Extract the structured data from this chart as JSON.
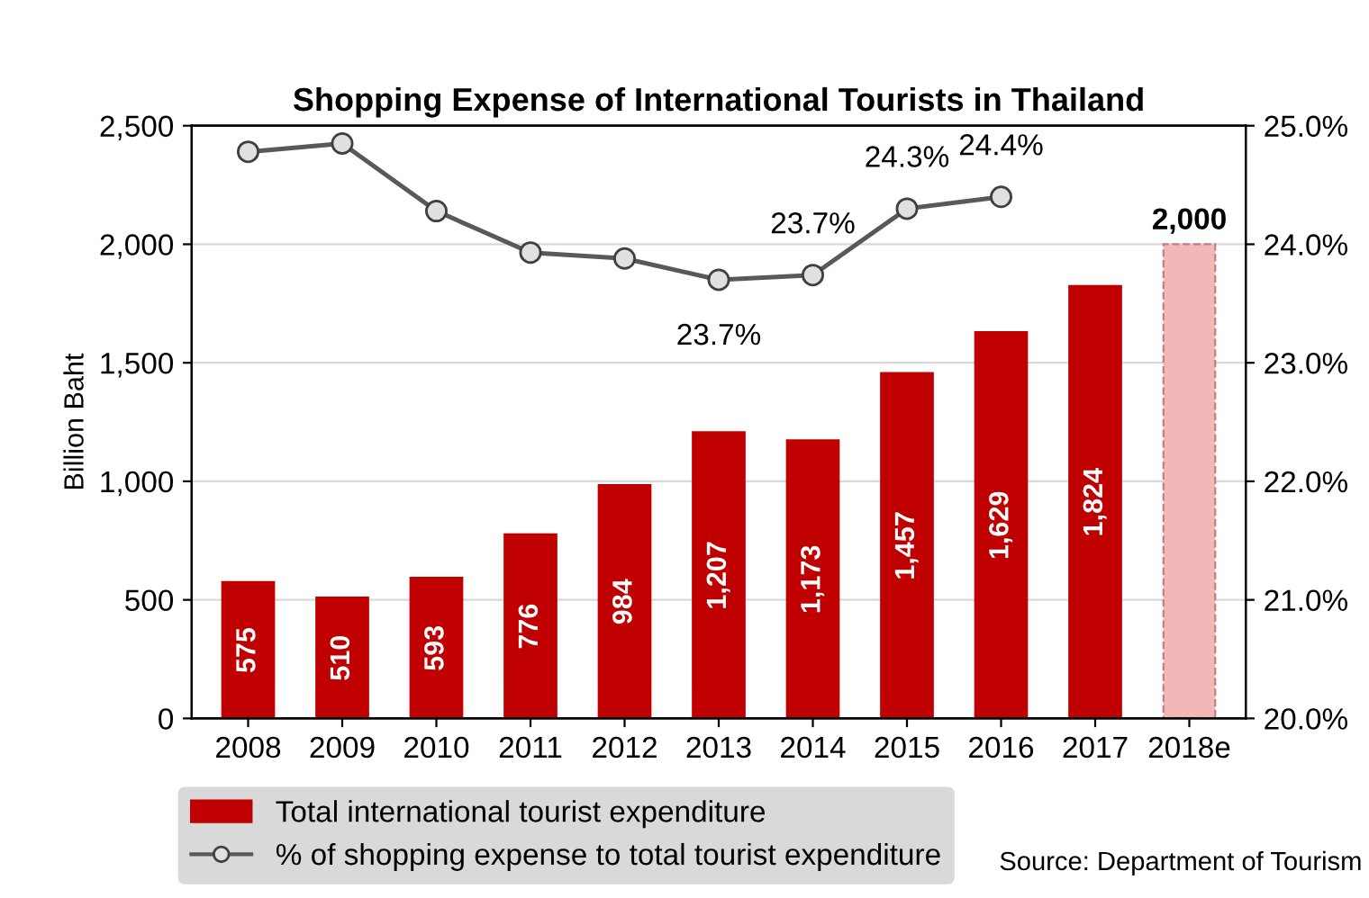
{
  "chart_data": {
    "type": "bar",
    "title": "Shopping Expense of International Tourists in Thailand",
    "ylabel": "Billion Baht",
    "categories": [
      "2008",
      "2009",
      "2010",
      "2011",
      "2012",
      "2013",
      "2014",
      "2015",
      "2016",
      "2017",
      "2018e"
    ],
    "series": [
      {
        "name": "Total international tourist expenditure",
        "color": "#c00000",
        "colors": [
          "#c00000",
          "#c00000",
          "#c00000",
          "#c00000",
          "#c00000",
          "#c00000",
          "#c00000",
          "#c00000",
          "#c00000",
          "#c00000",
          "#f2b8b8"
        ],
        "values": [
          575,
          510,
          593,
          776,
          984,
          1207,
          1173,
          1457,
          1629,
          1824,
          2000
        ],
        "value_labels": [
          "575",
          "510",
          "593",
          "776",
          "984",
          "1,207",
          "1,173",
          "1,457",
          "1,629",
          "1,824",
          "2,000"
        ]
      },
      {
        "name": "% of shopping expense to total tourist expenditure",
        "type": "line",
        "axis": "y2",
        "color": "#595959",
        "marker": "circle",
        "values": [
          24.78,
          24.85,
          24.28,
          23.93,
          23.88,
          23.7,
          23.74,
          24.3,
          24.4,
          null,
          null
        ],
        "value_labels": [
          null,
          null,
          null,
          null,
          null,
          "23.7%",
          "23.7%",
          "24.3%",
          "24.4%",
          null,
          null
        ]
      }
    ],
    "ylim": [
      0,
      2500
    ],
    "yticks": [
      0,
      {
        "value": 500,
        "label": "500"
      },
      {
        "value": 1000,
        "label": "1,000"
      },
      {
        "value": 1500,
        "label": "1,500"
      },
      {
        "value": 2000,
        "label": "2,000"
      },
      {
        "value": 2500,
        "label": "2,500"
      }
    ],
    "y2lim": [
      20,
      25
    ],
    "y2ticks": [
      {
        "value": 20,
        "label": "20.0%"
      },
      {
        "value": 21,
        "label": "21.0%"
      },
      {
        "value": 22,
        "label": "22.0%"
      },
      {
        "value": 23,
        "label": "23.0%"
      },
      {
        "value": 24,
        "label": "24.0%"
      },
      {
        "value": 25,
        "label": "25.0%"
      }
    ],
    "grid": "y",
    "legend": "bottom",
    "annotations": [
      "Source: Department of Tourism"
    ]
  }
}
